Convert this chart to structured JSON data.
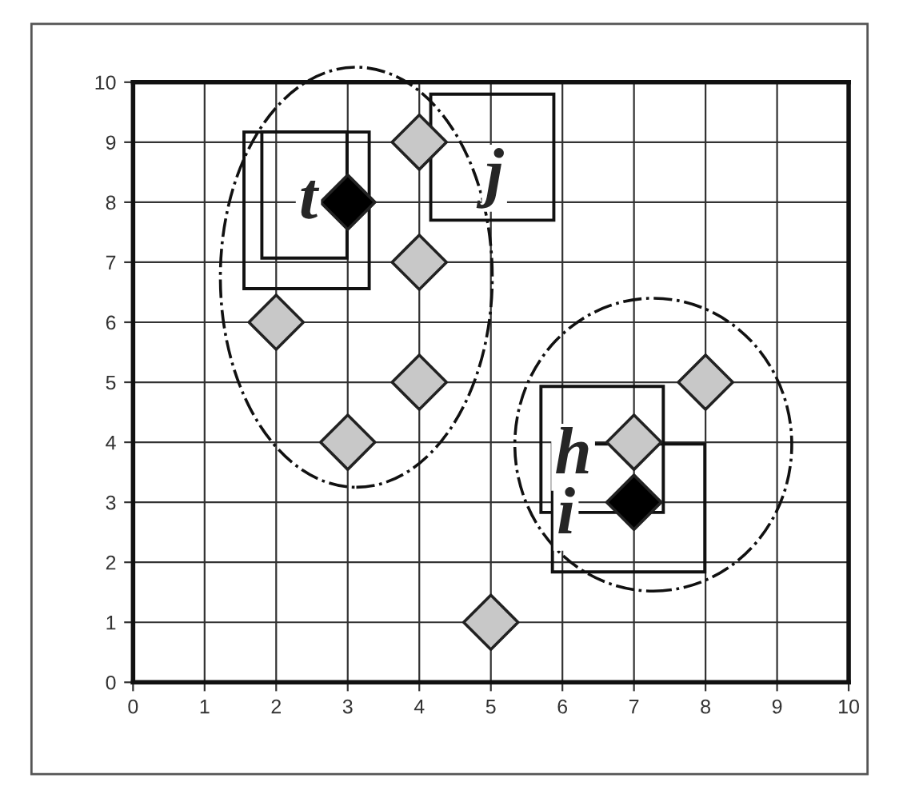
{
  "chart_data": {
    "type": "scatter",
    "series": [
      {
        "color": "#c8c8c8",
        "x": [
          2,
          3,
          4,
          4,
          4,
          5,
          7,
          8
        ],
        "values": [
          6,
          4,
          9,
          7,
          5,
          1,
          4,
          5
        ]
      },
      {
        "color": "#000000",
        "x": [
          3,
          7
        ],
        "values": [
          8,
          3
        ]
      }
    ],
    "annotations": [
      "t",
      "j",
      "h",
      "i"
    ],
    "xlim": [
      0,
      10
    ],
    "ylim": [
      0,
      10
    ],
    "xticks": [
      0,
      1,
      2,
      3,
      4,
      5,
      6,
      7,
      8,
      9,
      10
    ],
    "yticks": [
      0,
      1,
      2,
      3,
      4,
      5,
      6,
      7,
      8,
      9,
      10
    ],
    "grid": true,
    "marker": "diamond",
    "legend": false
  }
}
